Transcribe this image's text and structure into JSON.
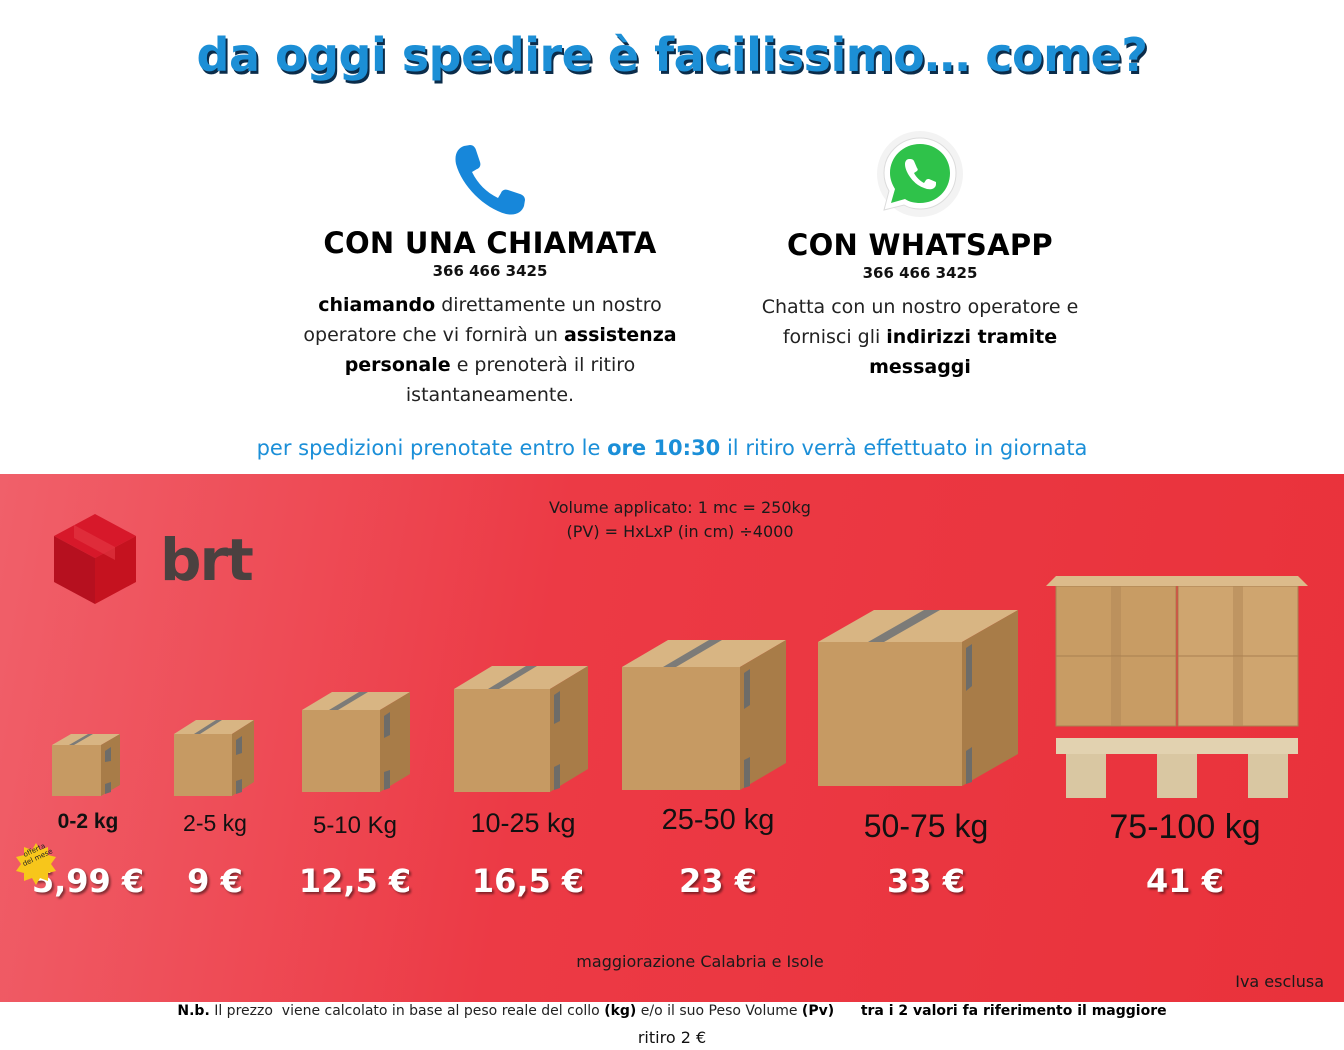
{
  "headline": "da oggi spedire è facilissimo… come?",
  "call": {
    "icon": "phone-icon",
    "title": "CON UNA CHIAMATA",
    "phone": "366 466 3425",
    "desc_bold1": "chiamando",
    "desc_text1": " direttamente un nostro operatore che vi fornirà un ",
    "desc_bold2": "assistenza personale",
    "desc_text2": " e prenoterà il ritiro istantaneamente."
  },
  "whatsapp": {
    "icon": "whatsapp-icon",
    "title": "CON WHATSAPP",
    "phone": "366 466 3425",
    "desc_text1": "Chatta con un nostro operatore e fornisci gli ",
    "desc_bold1": "indirizzi tramite messaggi"
  },
  "notice": {
    "text1": "per spedizioni prenotate entro le ",
    "bold": "ore 10:30",
    "text2": "  il ritiro verrà effettuato in giornata"
  },
  "volume": {
    "line1": "Volume applicato: 1 mc =  250kg",
    "line2": "(PV) =  HxLxP (in cm) ÷4000"
  },
  "brand": {
    "name": "brt",
    "icon": "brt-cube-logo",
    "colors": {
      "logo": "#d7182a",
      "text": "#4a4140",
      "panel": "#ea3640"
    }
  },
  "tiers": [
    {
      "weight": "0-2 kg",
      "price": "5,99 €"
    },
    {
      "weight": "2-5 kg",
      "price": "9 €"
    },
    {
      "weight": "5-10 Kg",
      "price": "12,5 €"
    },
    {
      "weight": "10-25 kg",
      "price": "16,5 €"
    },
    {
      "weight": "25-50 kg",
      "price": "23 €"
    },
    {
      "weight": "50-75 kg",
      "price": "33 €"
    },
    {
      "weight": "75-100 kg",
      "price": "41 €"
    }
  ],
  "badge": {
    "line1": "offerta",
    "line2": "del mese"
  },
  "surcharge": "maggiorazione Calabria e Isole",
  "iva": "Iva esclusa",
  "footnote": {
    "nb": "N.b.",
    "t1": " Il prezzo  viene calcolato in base al peso reale del collo ",
    "kg": "(kg)",
    "t2": " e/o il suo Peso Volume ",
    "pv": "(Pv)",
    "t3": "      ",
    "bold_end": "tra i 2 valori fa riferimento il maggiore"
  },
  "pickup": "ritiro 2 €"
}
